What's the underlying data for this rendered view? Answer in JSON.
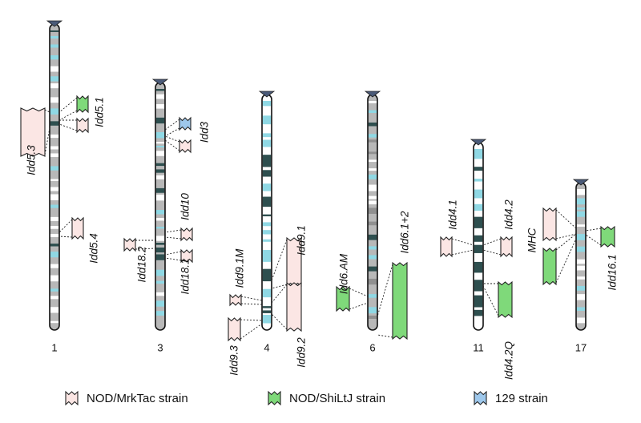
{
  "chromosomes": [
    {
      "label": "1"
    },
    {
      "label": "3"
    },
    {
      "label": "4"
    },
    {
      "label": "6"
    },
    {
      "label": "11"
    },
    {
      "label": "17"
    }
  ],
  "loci": [
    {
      "label": "Idd5.3"
    },
    {
      "label": "Idd5.1"
    },
    {
      "label": "Idd5.4"
    },
    {
      "label": "Idd3"
    },
    {
      "label": "Idd10"
    },
    {
      "label": "Idd18.2"
    },
    {
      "label": "Idd18.1"
    },
    {
      "label": "Idd9.1M"
    },
    {
      "label": "Idd9.3"
    },
    {
      "label": "Idd9.1"
    },
    {
      "label": "Idd9.2"
    },
    {
      "label": "Idd6.AM"
    },
    {
      "label": "Idd6.1+2"
    },
    {
      "label": "Idd4.1"
    },
    {
      "label": "Idd4.2"
    },
    {
      "label": "Idd4.2Q"
    },
    {
      "label": "MHC"
    },
    {
      "label": "Idd16.1"
    }
  ],
  "legend": [
    {
      "label": "NOD/MrkTac strain"
    },
    {
      "label": "NOD/ShiLtJ strain"
    },
    {
      "label": "129 strain"
    }
  ]
}
